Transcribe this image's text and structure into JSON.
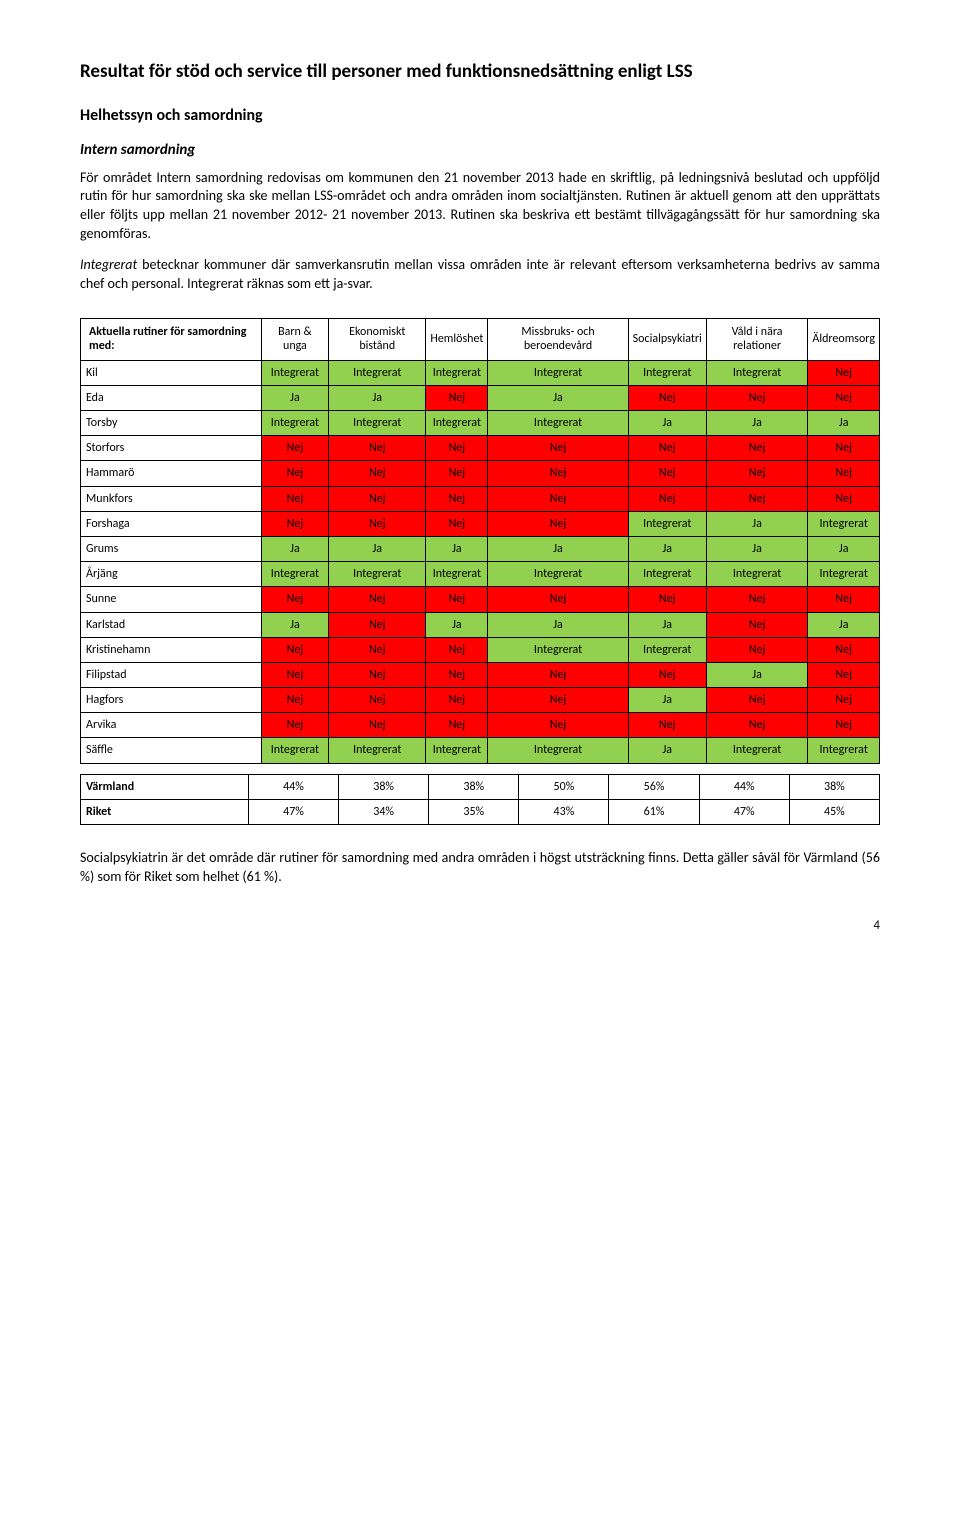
{
  "title": "Resultat för stöd och service till personer med funktionsnedsättning enligt LSS",
  "section_heading": "Helhetssyn och samordning",
  "subheading": "Intern samordning",
  "para1": "För området Intern samordning redovisas om kommunen den 21 november 2013 hade en skriftlig, på ledningsnivå beslutad och uppföljd rutin för hur samordning ska ske mellan LSS-området och andra områden inom socialtjänsten. Rutinen är aktuell genom att den upprättats eller följts upp mellan 21 november 2012- 21 november 2013. Rutinen ska beskriva ett bestämt tillvägagångssätt för hur samordning ska genomföras.",
  "para2_lead": "Integrerat",
  "para2_rest": " betecknar kommuner där samverkansrutin mellan vissa områden inte är relevant eftersom verksamheterna bedrivs av samma chef och personal.  Integrerat räknas som ett ja-svar.",
  "colors": {
    "green": "#92d050",
    "red": "#ff0000"
  },
  "table": {
    "header_label": "Aktuella rutiner för samordning med:",
    "columns": [
      "Barn & unga",
      "Ekonomiskt bistånd",
      "Hemlöshet",
      "Missbruks- och beroendevård",
      "Socialpsykiatri",
      "Våld i nära relationer",
      "Äldreomsorg"
    ],
    "rows": [
      {
        "name": "Kil",
        "cells": [
          {
            "v": "Integrerat",
            "c": "green"
          },
          {
            "v": "Integrerat",
            "c": "green"
          },
          {
            "v": "Integrerat",
            "c": "green"
          },
          {
            "v": "Integrerat",
            "c": "green"
          },
          {
            "v": "Integrerat",
            "c": "green"
          },
          {
            "v": "Integrerat",
            "c": "green"
          },
          {
            "v": "Nej",
            "c": "red"
          }
        ]
      },
      {
        "name": "Eda",
        "cells": [
          {
            "v": "Ja",
            "c": "green"
          },
          {
            "v": "Ja",
            "c": "green"
          },
          {
            "v": "Nej",
            "c": "red"
          },
          {
            "v": "Ja",
            "c": "green"
          },
          {
            "v": "Nej",
            "c": "red"
          },
          {
            "v": "Nej",
            "c": "red"
          },
          {
            "v": "Nej",
            "c": "red"
          }
        ]
      },
      {
        "name": "Torsby",
        "cells": [
          {
            "v": "Integrerat",
            "c": "green"
          },
          {
            "v": "Integrerat",
            "c": "green"
          },
          {
            "v": "Integrerat",
            "c": "green"
          },
          {
            "v": "Integrerat",
            "c": "green"
          },
          {
            "v": "Ja",
            "c": "green"
          },
          {
            "v": "Ja",
            "c": "green"
          },
          {
            "v": "Ja",
            "c": "green"
          }
        ]
      },
      {
        "name": "Storfors",
        "cells": [
          {
            "v": "Nej",
            "c": "red"
          },
          {
            "v": "Nej",
            "c": "red"
          },
          {
            "v": "Nej",
            "c": "red"
          },
          {
            "v": "Nej",
            "c": "red"
          },
          {
            "v": "Nej",
            "c": "red"
          },
          {
            "v": "Nej",
            "c": "red"
          },
          {
            "v": "Nej",
            "c": "red"
          }
        ]
      },
      {
        "name": "Hammarö",
        "cells": [
          {
            "v": "Nej",
            "c": "red"
          },
          {
            "v": "Nej",
            "c": "red"
          },
          {
            "v": "Nej",
            "c": "red"
          },
          {
            "v": "Nej",
            "c": "red"
          },
          {
            "v": "Nej",
            "c": "red"
          },
          {
            "v": "Nej",
            "c": "red"
          },
          {
            "v": "Nej",
            "c": "red"
          }
        ]
      },
      {
        "name": "Munkfors",
        "cells": [
          {
            "v": "Nej",
            "c": "red"
          },
          {
            "v": "Nej",
            "c": "red"
          },
          {
            "v": "Nej",
            "c": "red"
          },
          {
            "v": "Nej",
            "c": "red"
          },
          {
            "v": "Nej",
            "c": "red"
          },
          {
            "v": "Nej",
            "c": "red"
          },
          {
            "v": "Nej",
            "c": "red"
          }
        ]
      },
      {
        "name": "Forshaga",
        "cells": [
          {
            "v": "Nej",
            "c": "red"
          },
          {
            "v": "Nej",
            "c": "red"
          },
          {
            "v": "Nej",
            "c": "red"
          },
          {
            "v": "Nej",
            "c": "red"
          },
          {
            "v": "Integrerat",
            "c": "green"
          },
          {
            "v": "Ja",
            "c": "green"
          },
          {
            "v": "Integrerat",
            "c": "green"
          }
        ]
      },
      {
        "name": "Grums",
        "cells": [
          {
            "v": "Ja",
            "c": "green"
          },
          {
            "v": "Ja",
            "c": "green"
          },
          {
            "v": "Ja",
            "c": "green"
          },
          {
            "v": "Ja",
            "c": "green"
          },
          {
            "v": "Ja",
            "c": "green"
          },
          {
            "v": "Ja",
            "c": "green"
          },
          {
            "v": "Ja",
            "c": "green"
          }
        ]
      },
      {
        "name": "Årjäng",
        "cells": [
          {
            "v": "Integrerat",
            "c": "green"
          },
          {
            "v": "Integrerat",
            "c": "green"
          },
          {
            "v": "Integrerat",
            "c": "green"
          },
          {
            "v": "Integrerat",
            "c": "green"
          },
          {
            "v": "Integrerat",
            "c": "green"
          },
          {
            "v": "Integrerat",
            "c": "green"
          },
          {
            "v": "Integrerat",
            "c": "green"
          }
        ]
      },
      {
        "name": "Sunne",
        "cells": [
          {
            "v": "Nej",
            "c": "red"
          },
          {
            "v": "Nej",
            "c": "red"
          },
          {
            "v": "Nej",
            "c": "red"
          },
          {
            "v": "Nej",
            "c": "red"
          },
          {
            "v": "Nej",
            "c": "red"
          },
          {
            "v": "Nej",
            "c": "red"
          },
          {
            "v": "Nej",
            "c": "red"
          }
        ]
      },
      {
        "name": "Karlstad",
        "cells": [
          {
            "v": "Ja",
            "c": "green"
          },
          {
            "v": "Nej",
            "c": "red"
          },
          {
            "v": "Ja",
            "c": "green"
          },
          {
            "v": "Ja",
            "c": "green"
          },
          {
            "v": "Ja",
            "c": "green"
          },
          {
            "v": "Nej",
            "c": "red"
          },
          {
            "v": "Ja",
            "c": "green"
          }
        ]
      },
      {
        "name": "Kristinehamn",
        "cells": [
          {
            "v": "Nej",
            "c": "red"
          },
          {
            "v": "Nej",
            "c": "red"
          },
          {
            "v": "Nej",
            "c": "red"
          },
          {
            "v": "Integrerat",
            "c": "green"
          },
          {
            "v": "Integrerat",
            "c": "green"
          },
          {
            "v": "Nej",
            "c": "red"
          },
          {
            "v": "Nej",
            "c": "red"
          }
        ]
      },
      {
        "name": "Filipstad",
        "cells": [
          {
            "v": "Nej",
            "c": "red"
          },
          {
            "v": "Nej",
            "c": "red"
          },
          {
            "v": "Nej",
            "c": "red"
          },
          {
            "v": "Nej",
            "c": "red"
          },
          {
            "v": "Nej",
            "c": "red"
          },
          {
            "v": "Ja",
            "c": "green"
          },
          {
            "v": "Nej",
            "c": "red"
          }
        ]
      },
      {
        "name": "Hagfors",
        "cells": [
          {
            "v": "Nej",
            "c": "red"
          },
          {
            "v": "Nej",
            "c": "red"
          },
          {
            "v": "Nej",
            "c": "red"
          },
          {
            "v": "Nej",
            "c": "red"
          },
          {
            "v": "Ja",
            "c": "green"
          },
          {
            "v": "Nej",
            "c": "red"
          },
          {
            "v": "Nej",
            "c": "red"
          }
        ]
      },
      {
        "name": "Arvika",
        "cells": [
          {
            "v": "Nej",
            "c": "red"
          },
          {
            "v": "Nej",
            "c": "red"
          },
          {
            "v": "Nej",
            "c": "red"
          },
          {
            "v": "Nej",
            "c": "red"
          },
          {
            "v": "Nej",
            "c": "red"
          },
          {
            "v": "Nej",
            "c": "red"
          },
          {
            "v": "Nej",
            "c": "red"
          }
        ]
      },
      {
        "name": "Säffle",
        "cells": [
          {
            "v": "Integrerat",
            "c": "green"
          },
          {
            "v": "Integrerat",
            "c": "green"
          },
          {
            "v": "Integrerat",
            "c": "green"
          },
          {
            "v": "Integrerat",
            "c": "green"
          },
          {
            "v": "Ja",
            "c": "green"
          },
          {
            "v": "Integrerat",
            "c": "green"
          },
          {
            "v": "Integrerat",
            "c": "green"
          }
        ]
      }
    ]
  },
  "summary": {
    "rows": [
      {
        "name": "Värmland",
        "cells": [
          "44%",
          "38%",
          "38%",
          "50%",
          "56%",
          "44%",
          "38%"
        ]
      },
      {
        "name": "Riket",
        "cells": [
          "47%",
          "34%",
          "35%",
          "43%",
          "61%",
          "47%",
          "45%"
        ]
      }
    ]
  },
  "closing": "Socialpsykiatrin är det område där rutiner för samordning med andra områden i högst utsträckning finns. Detta gäller såväl för Värmland (56 %) som för Riket som helhet (61 %).",
  "page_number": "4"
}
